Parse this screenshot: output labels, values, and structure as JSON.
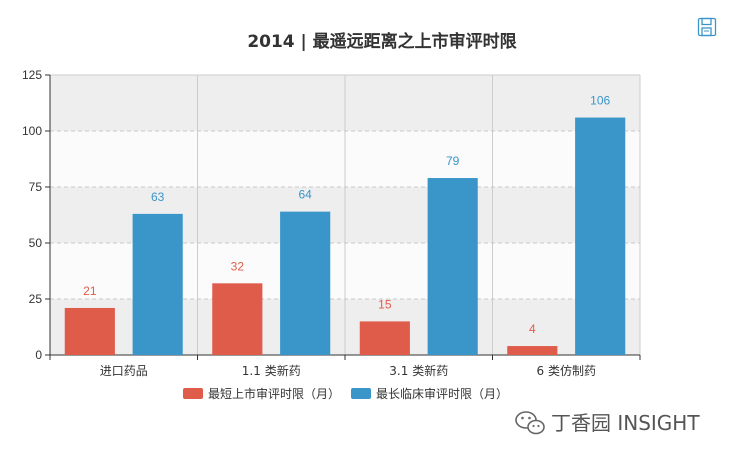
{
  "chart_data": {
    "type": "bar",
    "title": "2014 |  最遥远距离之上市审评时限",
    "categories": [
      "进口药品",
      "1.1 类新药",
      "3.1 类新药",
      "6 类仿制药"
    ],
    "series": [
      {
        "name": "最短上市审评时限（月）",
        "values": [
          21,
          32,
          15,
          4
        ],
        "color": "#e05c4a"
      },
      {
        "name": "最长临床审评时限（月）",
        "values": [
          63,
          64,
          79,
          106
        ],
        "color": "#3a96c8"
      }
    ],
    "ylim": [
      0,
      125
    ],
    "yticks": [
      0,
      25,
      50,
      75,
      100,
      125
    ],
    "xlabel": "",
    "ylabel": "",
    "legend_position": "bottom-center",
    "grid": true
  },
  "toolbar": {
    "save_icon": "save-image-icon"
  },
  "watermark": {
    "icon": "wechat-icon",
    "text": "丁香园 INSIGHT"
  }
}
